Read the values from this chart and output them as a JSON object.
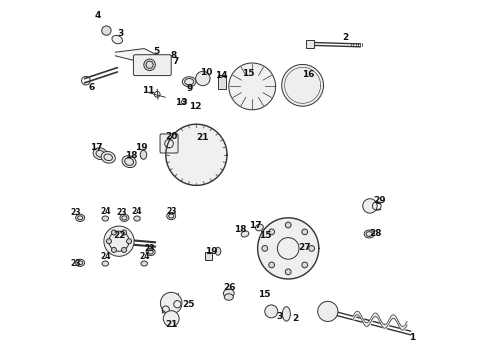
{
  "bg_color": "#ffffff",
  "line_color": "#333333",
  "figsize": [
    4.9,
    3.6
  ],
  "dpi": 100
}
